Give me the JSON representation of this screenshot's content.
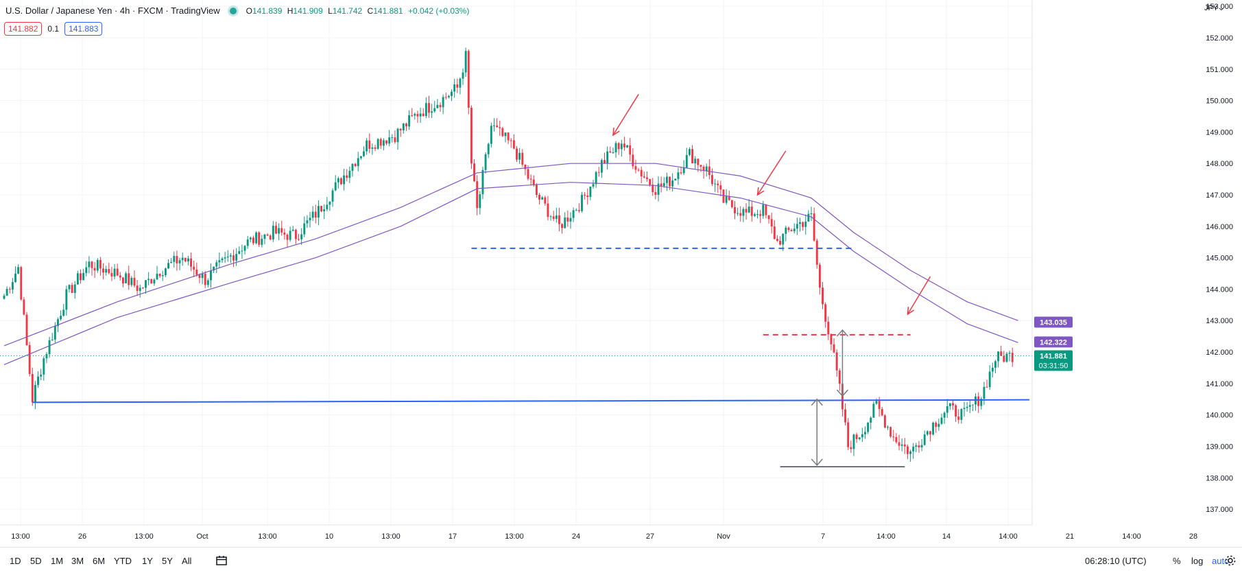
{
  "header": {
    "title": "U.S. Dollar / Japanese Yen · 4h · FXCM · TradingView",
    "ohlc": [
      {
        "k": "O",
        "v": "141.839"
      },
      {
        "k": "H",
        "v": "141.909"
      },
      {
        "k": "L",
        "v": "141.742"
      },
      {
        "k": "C",
        "v": "141.881"
      }
    ],
    "change": "+0.042 (+0.03%)",
    "sell_price": "141.882",
    "spread": "0.1",
    "buy_price": "141.883",
    "currency": "JPY"
  },
  "colors": {
    "up": "#089981",
    "down": "#f23645",
    "ma": "#7e57c2",
    "hline": "#2962ff",
    "arrow": "#f23645",
    "measure": "#787b86"
  },
  "toolbar": {
    "timeframes": [
      "1D",
      "5D",
      "1M",
      "3M",
      "6M",
      "YTD",
      "1Y",
      "5Y",
      "All"
    ],
    "calendar_icon": "calendar-range-icon",
    "clock": "06:28:10 (UTC)",
    "percent": "%",
    "log": "log",
    "auto": "auto",
    "settings_icon": "gear-icon"
  },
  "chart_data": {
    "type": "candlestick",
    "symbol": "USDJPY",
    "interval": "4h",
    "ylim": [
      136.5,
      153.2
    ],
    "y_ticks": [
      "137.000",
      "138.000",
      "139.000",
      "140.000",
      "141.000",
      "142.000",
      "143.000",
      "144.000",
      "145.000",
      "146.000",
      "147.000",
      "148.000",
      "149.000",
      "150.000",
      "151.000",
      "152.000",
      "153.000"
    ],
    "x_ticks": [
      "13:00",
      "26",
      "13:00",
      "Oct",
      "13:00",
      "10",
      "13:00",
      "17",
      "13:00",
      "24",
      "27",
      "Nov",
      "7",
      "14:00",
      "14",
      "14:00",
      "21",
      "14:00",
      "28"
    ],
    "price_labels": {
      "ma_upper": "143.035",
      "ma_lower": "142.322",
      "last": "141.881",
      "countdown": "03:31:50"
    },
    "candle_anchors": [
      [
        0,
        143.8
      ],
      [
        5,
        144.7
      ],
      [
        10,
        140.5
      ],
      [
        14,
        141.8
      ],
      [
        22,
        143.8
      ],
      [
        30,
        144.8
      ],
      [
        40,
        144.5
      ],
      [
        48,
        144.0
      ],
      [
        55,
        144.6
      ],
      [
        63,
        145.0
      ],
      [
        71,
        144.3
      ],
      [
        78,
        144.9
      ],
      [
        86,
        145.5
      ],
      [
        95,
        145.8
      ],
      [
        103,
        145.7
      ],
      [
        111,
        146.5
      ],
      [
        119,
        147.5
      ],
      [
        128,
        148.6
      ],
      [
        138,
        148.9
      ],
      [
        146,
        149.6
      ],
      [
        154,
        150.0
      ],
      [
        160,
        150.4
      ],
      [
        163,
        151.4
      ],
      [
        165,
        148.0
      ],
      [
        167,
        146.5
      ],
      [
        172,
        149.2
      ],
      [
        180,
        148.5
      ],
      [
        188,
        147.0
      ],
      [
        196,
        146.0
      ],
      [
        204,
        146.8
      ],
      [
        211,
        148.0
      ],
      [
        218,
        148.7
      ],
      [
        224,
        147.8
      ],
      [
        230,
        147.2
      ],
      [
        236,
        147.5
      ],
      [
        242,
        148.3
      ],
      [
        248,
        147.8
      ],
      [
        254,
        146.8
      ],
      [
        262,
        146.4
      ],
      [
        268,
        146.5
      ],
      [
        273,
        145.5
      ],
      [
        279,
        146.0
      ],
      [
        285,
        146.3
      ],
      [
        288,
        144.0
      ],
      [
        292,
        142.3
      ],
      [
        295,
        140.8
      ],
      [
        298,
        139.0
      ],
      [
        303,
        139.5
      ],
      [
        308,
        140.3
      ],
      [
        314,
        139.3
      ],
      [
        320,
        138.8
      ],
      [
        326,
        139.5
      ],
      [
        333,
        140.2
      ],
      [
        339,
        140.0
      ],
      [
        345,
        140.6
      ],
      [
        350,
        141.8
      ],
      [
        356,
        141.9
      ]
    ],
    "moving_averages": [
      {
        "points": [
          [
            0,
            142.2
          ],
          [
            40,
            143.6
          ],
          [
            80,
            144.8
          ],
          [
            110,
            145.6
          ],
          [
            140,
            146.6
          ],
          [
            167,
            147.7
          ],
          [
            200,
            148.0
          ],
          [
            230,
            148.0
          ],
          [
            260,
            147.6
          ],
          [
            285,
            146.9
          ],
          [
            300,
            145.8
          ],
          [
            320,
            144.6
          ],
          [
            340,
            143.6
          ],
          [
            358,
            143.0
          ]
        ]
      },
      {
        "points": [
          [
            0,
            141.6
          ],
          [
            40,
            143.1
          ],
          [
            80,
            144.2
          ],
          [
            110,
            145.0
          ],
          [
            140,
            146.0
          ],
          [
            167,
            147.2
          ],
          [
            200,
            147.4
          ],
          [
            230,
            147.3
          ],
          [
            260,
            146.9
          ],
          [
            285,
            146.3
          ],
          [
            300,
            145.2
          ],
          [
            320,
            144.0
          ],
          [
            340,
            142.9
          ],
          [
            358,
            142.3
          ]
        ]
      }
    ],
    "annotations": {
      "support_line": {
        "y": 140.4,
        "x_from": 10,
        "x_to": 362
      },
      "resistance_line": {
        "y": 140.48
      },
      "dashed_blue": {
        "y": 145.3,
        "x_from": 165,
        "x_to": 300
      },
      "dashed_red": {
        "y": 142.55,
        "x_from": 268,
        "x_to": 320
      },
      "gray_line": {
        "y": 138.35,
        "x_from": 274,
        "x_to": 318
      },
      "measure_arrows": [
        {
          "x": 296,
          "y1": 140.6,
          "y2": 142.7
        },
        {
          "x": 287,
          "y1": 138.4,
          "y2": 140.5
        }
      ],
      "red_arrows": [
        {
          "x1": 224,
          "y1": 150.2,
          "x2": 215,
          "y2": 148.9
        },
        {
          "x1": 276,
          "y1": 148.4,
          "x2": 266,
          "y2": 147.0
        },
        {
          "x1": 327,
          "y1": 144.4,
          "x2": 319,
          "y2": 143.2
        }
      ]
    }
  }
}
